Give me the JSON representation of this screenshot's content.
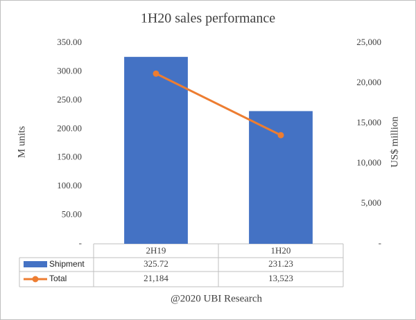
{
  "chart_data": {
    "type": "bar",
    "title": "1H20 sales performance",
    "categories": [
      "2H19",
      "1H20"
    ],
    "series": [
      {
        "name": "Shipment",
        "type": "bar",
        "color": "#4472c4",
        "values": [
          325.72,
          231.23
        ]
      },
      {
        "name": "Total",
        "type": "line",
        "axis": "y2",
        "color": "#ed7d31",
        "values": [
          21184,
          13523
        ],
        "value_labels": [
          "21,184",
          "13,523"
        ]
      }
    ],
    "y_label": "M units",
    "y2_label": "US$ million",
    "x_label": "@2020 UBI Research",
    "ylim": [
      0,
      350
    ],
    "yticks": [
      {
        "value": 0,
        "label": "-"
      },
      {
        "value": 50,
        "label": "50.00"
      },
      {
        "value": 100,
        "label": "100.00"
      },
      {
        "value": 150,
        "label": "150.00"
      },
      {
        "value": 200,
        "label": "200.00"
      },
      {
        "value": 250,
        "label": "250.00"
      },
      {
        "value": 300,
        "label": "300.00"
      },
      {
        "value": 350,
        "label": "350.00"
      }
    ],
    "y2lim": [
      0,
      25000
    ],
    "y2ticks": [
      {
        "value": 0,
        "label": "-"
      },
      {
        "value": 5000,
        "label": "5,000"
      },
      {
        "value": 10000,
        "label": "10,000"
      },
      {
        "value": 15000,
        "label": "15,000"
      },
      {
        "value": 20000,
        "label": "20,000"
      },
      {
        "value": 25000,
        "label": "25,000"
      }
    ],
    "grid": false,
    "data_table": true
  }
}
